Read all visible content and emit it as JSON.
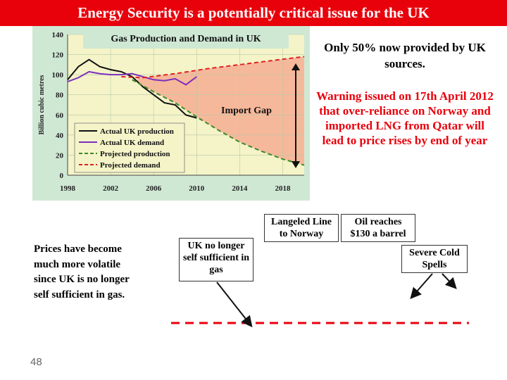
{
  "slide": {
    "title": "Energy Security is a potentially critical issue for the UK",
    "page_number": "48"
  },
  "text_blocks": {
    "only_50": "Only 50% now provided by UK sources.",
    "warning": "Warning issued on 17th April 2012 that over-reliance on Norway and imported LNG from Qatar  will lead to price rises by end of year",
    "prices": "Prices have become much more volatile since UK is no longer self sufficient in gas."
  },
  "timeline": {
    "uk_not_sufficient": "UK no longer self sufficient in gas",
    "langeled": "Langeled Line to Norway",
    "oil": "Oil reaches $130 a barrel",
    "cold": "Severe Cold Spells"
  },
  "colors": {
    "title_bar": "#e8000b",
    "chart_bg": "#cfe8d4",
    "plot_bg": "#f4f4c8",
    "import_gap": "#f6b89a",
    "actual_production": "#111111",
    "actual_demand": "#7b2fbe",
    "projected_production": "#3d8a2a",
    "projected_demand": "#e02020"
  },
  "chart_data": {
    "type": "line",
    "title": "Gas Production and Demand in UK",
    "ylabel": "Billion cubic metres",
    "xlabel": "",
    "xlim": [
      1998,
      2020
    ],
    "ylim": [
      0,
      140
    ],
    "x_ticks": [
      1998,
      2002,
      2006,
      2010,
      2014,
      2018
    ],
    "y_ticks": [
      0,
      20,
      40,
      60,
      80,
      100,
      120,
      140
    ],
    "annotation": "Import Gap",
    "legend_position": "bottom-left",
    "series": [
      {
        "name": "Actual UK production",
        "style": "solid",
        "color": "#111111",
        "x": [
          1998,
          1999,
          2000,
          2001,
          2002,
          2003,
          2004,
          2005,
          2006,
          2007,
          2008,
          2009,
          2010
        ],
        "y": [
          95,
          108,
          115,
          108,
          105,
          103,
          98,
          88,
          80,
          72,
          70,
          60,
          57
        ]
      },
      {
        "name": "Actual UK demand",
        "style": "solid",
        "color": "#7b2fbe",
        "x": [
          1998,
          1999,
          2000,
          2001,
          2002,
          2003,
          2004,
          2005,
          2006,
          2007,
          2008,
          2009,
          2010
        ],
        "y": [
          93,
          97,
          103,
          101,
          100,
          100,
          101,
          98,
          95,
          94,
          96,
          90,
          98
        ]
      },
      {
        "name": "Projected production",
        "style": "dashed",
        "color": "#3d8a2a",
        "x": [
          2004,
          2006,
          2008,
          2010,
          2012,
          2014,
          2016,
          2018,
          2020
        ],
        "y": [
          95,
          83,
          72,
          58,
          45,
          33,
          24,
          16,
          10
        ]
      },
      {
        "name": "Projected demand",
        "style": "dashed",
        "color": "#e02020",
        "x": [
          2003,
          2005,
          2008,
          2011,
          2014,
          2017,
          2020
        ],
        "y": [
          98,
          97,
          101,
          106,
          110,
          114,
          118
        ]
      }
    ]
  }
}
